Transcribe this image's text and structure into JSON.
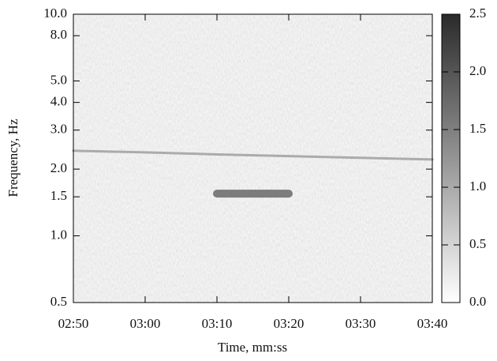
{
  "chart_data": {
    "type": "spectrogram",
    "x_label": "Time, mm:ss",
    "y_label": "Frequency, Hz",
    "xlim": [
      170,
      220
    ],
    "xticks": [
      {
        "value": 170,
        "label": "02:50"
      },
      {
        "value": 180,
        "label": "03:00"
      },
      {
        "value": 190,
        "label": "03:10"
      },
      {
        "value": 200,
        "label": "03:20"
      },
      {
        "value": 210,
        "label": "03:30"
      },
      {
        "value": 220,
        "label": "03:40"
      }
    ],
    "ylim": [
      0.5,
      10
    ],
    "log_y": true,
    "yticks": [
      {
        "value": 0.5,
        "label": "0.5"
      },
      {
        "value": 1,
        "label": "1.0"
      },
      {
        "value": 1.5,
        "label": "1.5"
      },
      {
        "value": 2,
        "label": "2.0"
      },
      {
        "value": 3,
        "label": "3.0"
      },
      {
        "value": 4,
        "label": "4.0"
      },
      {
        "value": 5,
        "label": "5.0"
      },
      {
        "value": 8,
        "label": "8.0"
      },
      {
        "value": 10,
        "label": "10.0"
      }
    ],
    "x": [
      170,
      180,
      190,
      200,
      210,
      220
    ],
    "series": [
      {
        "color": "#9a9a9a",
        "values": [
          2.42,
          2.38,
          2.33,
          2.29,
          2.25,
          2.21
        ]
      },
      {
        "color": "#555555",
        "values": [
          null,
          null,
          1.55,
          1.55,
          null,
          null
        ]
      }
    ],
    "colorbar": {
      "lim": [
        0,
        2.5
      ],
      "ticks": [
        {
          "value": 0,
          "label": "0.0"
        },
        {
          "value": 0.5,
          "label": "0.5"
        },
        {
          "value": 1,
          "label": "1.0"
        },
        {
          "value": 1.5,
          "label": "1.5"
        },
        {
          "value": 2,
          "label": "2.0"
        },
        {
          "value": 2.5,
          "label": "2.5"
        }
      ],
      "colors": [
        "#ffffff",
        "#2a2a2a"
      ]
    }
  }
}
